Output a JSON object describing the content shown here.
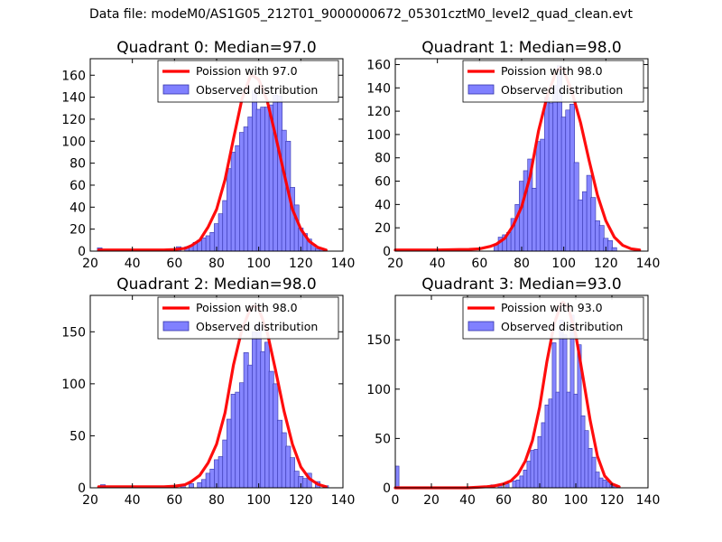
{
  "figure_title": "Data file: modeM0/AS1G05_212T01_9000000672_05301cztM0_level2_quad_clean.evt",
  "colors": {
    "bar_fill": "#8080ff",
    "bar_edge": "#3333aa",
    "curve": "#ff0000"
  },
  "chart_data": [
    {
      "type": "bar",
      "title": "Quadrant 0: Median=97.0",
      "xlim": [
        20,
        140
      ],
      "ylim": [
        0,
        175
      ],
      "xticks": [
        20,
        40,
        60,
        80,
        100,
        120,
        140
      ],
      "yticks": [
        0,
        20,
        40,
        60,
        80,
        100,
        120,
        140,
        160
      ],
      "bin_width": 2.25,
      "legend": {
        "curve_label": "Poission with 97.0",
        "bar_label": "Observed distribution",
        "position": "top-right"
      },
      "bar_x": [
        24.5,
        62,
        66,
        68,
        70,
        72,
        74,
        76,
        78,
        80,
        82,
        84,
        86,
        88,
        90,
        92,
        94,
        96,
        98,
        100,
        102,
        104,
        106,
        108,
        110,
        112,
        114,
        116,
        118,
        120,
        122,
        124,
        126,
        128,
        130
      ],
      "bar_values": [
        3,
        4,
        4,
        5,
        8,
        10,
        12,
        14,
        17,
        25,
        34,
        46,
        75,
        90,
        96,
        108,
        113,
        122,
        146,
        129,
        131,
        131,
        133,
        142,
        141,
        110,
        100,
        58,
        42,
        21,
        16,
        11,
        6,
        2,
        2
      ],
      "curve_x": [
        24,
        40,
        55,
        60,
        65,
        68,
        72,
        76,
        80,
        84,
        88,
        92,
        96,
        97,
        100,
        104,
        108,
        112,
        116,
        120,
        124,
        128,
        132
      ],
      "curve_y": [
        1,
        1,
        1,
        1.5,
        2.5,
        5,
        10,
        22,
        38,
        65,
        102,
        138,
        159,
        160,
        156,
        137,
        105,
        71,
        38,
        20,
        9,
        3.5,
        1
      ]
    },
    {
      "type": "bar",
      "title": "Quadrant 1: Median=98.0",
      "xlim": [
        20,
        140
      ],
      "ylim": [
        0,
        165
      ],
      "xticks": [
        20,
        40,
        60,
        80,
        100,
        120,
        140
      ],
      "yticks": [
        0,
        20,
        40,
        60,
        80,
        100,
        120,
        140,
        160
      ],
      "bin_width": 2.25,
      "legend": {
        "curve_label": "Poission with 98.0",
        "bar_label": "Observed distribution",
        "position": "top-right"
      },
      "bar_x": [
        68,
        70,
        72,
        74,
        76,
        78,
        80,
        82,
        84,
        86,
        88,
        90,
        92,
        94,
        96,
        98,
        100,
        102,
        104,
        106,
        108,
        110,
        112,
        114,
        116,
        118,
        120,
        122,
        124
      ],
      "bar_values": [
        6,
        12,
        14,
        16,
        28,
        40,
        60,
        69,
        79,
        54,
        94,
        96,
        132,
        127,
        142,
        159,
        115,
        121,
        126,
        76,
        44,
        51,
        65,
        46,
        26,
        22,
        11,
        9,
        3
      ],
      "curve_x": [
        20,
        40,
        55,
        60,
        65,
        68,
        72,
        76,
        80,
        84,
        88,
        92,
        96,
        98,
        100,
        104,
        108,
        112,
        116,
        120,
        124,
        128,
        132,
        136
      ],
      "curve_y": [
        1,
        1,
        1.5,
        2,
        4,
        6,
        11,
        22,
        38,
        64,
        103,
        132,
        152,
        157,
        155,
        136,
        110,
        78,
        48,
        26,
        12,
        5,
        2,
        1
      ]
    },
    {
      "type": "bar",
      "title": "Quadrant 2: Median=98.0",
      "xlim": [
        20,
        140
      ],
      "ylim": [
        0,
        185
      ],
      "xticks": [
        20,
        40,
        60,
        80,
        100,
        120,
        140
      ],
      "yticks": [
        0,
        50,
        100,
        150
      ],
      "bin_width": 2.25,
      "legend": {
        "curve_label": "Poission with 98.0",
        "bar_label": "Observed distribution",
        "position": "top-right"
      },
      "bar_x": [
        26,
        64,
        68,
        72,
        74,
        76,
        78,
        80,
        82,
        84,
        86,
        88,
        90,
        92,
        94,
        96,
        98,
        100,
        102,
        104,
        106,
        108,
        110,
        112,
        114,
        116,
        118,
        120,
        122,
        124,
        128,
        132
      ],
      "bar_values": [
        3,
        3,
        4,
        5,
        8,
        14,
        18,
        27,
        30,
        46,
        66,
        90,
        92,
        101,
        130,
        118,
        150,
        158,
        131,
        140,
        112,
        100,
        65,
        53,
        40,
        29,
        16,
        11,
        9,
        14,
        6,
        2
      ],
      "curve_x": [
        24,
        40,
        55,
        60,
        65,
        68,
        72,
        76,
        80,
        84,
        88,
        92,
        96,
        98,
        100,
        104,
        108,
        112,
        116,
        120,
        124,
        128,
        132
      ],
      "curve_y": [
        1,
        1,
        1,
        1.5,
        3,
        6,
        12,
        24,
        42,
        72,
        118,
        152,
        172,
        175,
        172,
        150,
        113,
        74,
        42,
        20,
        9,
        3.5,
        1
      ]
    },
    {
      "type": "bar",
      "title": "Quadrant 3: Median=93.0",
      "xlim": [
        0,
        140
      ],
      "ylim": [
        0,
        195
      ],
      "xticks": [
        0,
        20,
        40,
        60,
        80,
        100,
        120,
        140
      ],
      "yticks": [
        0,
        50,
        100,
        150
      ],
      "bin_width": 2.1,
      "legend": {
        "curve_label": "Poission with 93.0",
        "bar_label": "Observed distribution",
        "position": "top-right"
      },
      "bar_x": [
        1,
        54,
        58,
        62,
        66,
        68,
        70,
        72,
        74,
        76,
        78,
        80,
        82,
        84,
        86,
        88,
        90,
        92,
        94,
        96,
        98,
        100,
        102,
        104,
        106,
        108,
        110,
        112,
        114,
        116,
        118,
        120,
        122
      ],
      "bar_values": [
        22,
        3,
        3,
        4,
        7,
        8,
        12,
        18,
        27,
        38,
        39,
        52,
        66,
        84,
        90,
        147,
        97,
        170,
        155,
        97,
        175,
        95,
        145,
        73,
        58,
        40,
        31,
        16,
        10,
        8,
        6,
        3,
        2
      ],
      "curve_x": [
        0,
        20,
        40,
        50,
        55,
        60,
        64,
        68,
        72,
        76,
        80,
        84,
        88,
        92,
        93,
        96,
        100,
        104,
        108,
        112,
        116,
        120,
        124
      ],
      "curve_y": [
        0,
        0,
        0,
        1,
        2,
        4,
        7,
        14,
        27,
        48,
        82,
        128,
        166,
        187,
        188,
        182,
        155,
        112,
        68,
        32,
        12,
        4,
        1
      ]
    }
  ]
}
